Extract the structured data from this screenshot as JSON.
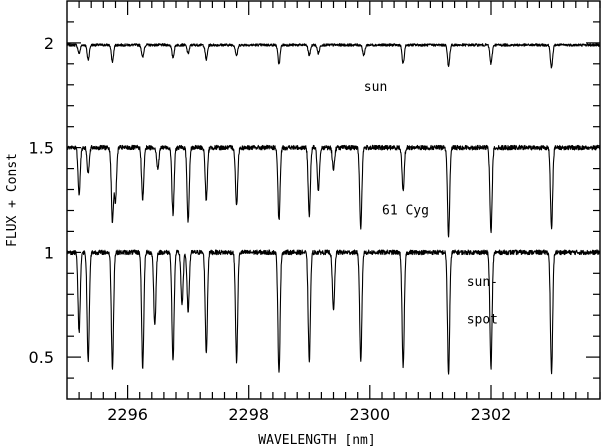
{
  "chart_data": {
    "type": "line",
    "title": "",
    "xlabel": "WAVELENGTH [nm]",
    "ylabel": "FLUX + Const",
    "xlim": [
      2295.0,
      2303.8
    ],
    "ylim": [
      0.3,
      2.2
    ],
    "x_ticks": [
      2296,
      2298,
      2300,
      2302
    ],
    "x_tick_labels": [
      "2296",
      "2298",
      "2300",
      "2302"
    ],
    "y_ticks": [
      0.5,
      1.0,
      1.5,
      2.0
    ],
    "y_tick_labels": [
      "0.5",
      "1",
      "1.5",
      "2"
    ],
    "grid": false,
    "legend": "none",
    "annotations": [
      {
        "text": "sun",
        "x": 2299.9,
        "y": 1.77
      },
      {
        "text": "61 Cyg",
        "x": 2300.2,
        "y": 1.18
      },
      {
        "text": "sun-",
        "x": 2301.6,
        "y": 0.84
      },
      {
        "text": "spot",
        "x": 2301.6,
        "y": 0.66
      }
    ],
    "series": [
      {
        "continuum": 1.99,
        "lines": [
          [
            2295.2,
            0.04
          ],
          [
            2295.35,
            0.07
          ],
          [
            2295.75,
            0.08
          ],
          [
            2296.25,
            0.06
          ],
          [
            2296.75,
            0.06
          ],
          [
            2297.0,
            0.04
          ],
          [
            2297.3,
            0.07
          ],
          [
            2297.8,
            0.05
          ],
          [
            2298.5,
            0.09
          ],
          [
            2299.0,
            0.05
          ],
          [
            2299.15,
            0.04
          ],
          [
            2299.9,
            0.05
          ],
          [
            2300.55,
            0.09
          ],
          [
            2301.3,
            0.1
          ],
          [
            2302.0,
            0.09
          ],
          [
            2303.0,
            0.11
          ]
        ]
      },
      {
        "continuum": 1.5,
        "lines": [
          [
            2295.2,
            0.22
          ],
          [
            2295.35,
            0.12
          ],
          [
            2295.75,
            0.35
          ],
          [
            2295.8,
            0.25
          ],
          [
            2296.25,
            0.25
          ],
          [
            2296.5,
            0.1
          ],
          [
            2296.75,
            0.32
          ],
          [
            2297.0,
            0.35
          ],
          [
            2297.3,
            0.25
          ],
          [
            2297.8,
            0.28
          ],
          [
            2298.5,
            0.35
          ],
          [
            2299.0,
            0.32
          ],
          [
            2299.15,
            0.2
          ],
          [
            2299.4,
            0.1
          ],
          [
            2299.85,
            0.38
          ],
          [
            2300.55,
            0.2
          ],
          [
            2301.3,
            0.42
          ],
          [
            2302.0,
            0.4
          ],
          [
            2303.0,
            0.38
          ]
        ]
      },
      {
        "continuum": 1.0,
        "lines": [
          [
            2295.2,
            0.38
          ],
          [
            2295.35,
            0.52
          ],
          [
            2295.75,
            0.55
          ],
          [
            2296.25,
            0.55
          ],
          [
            2296.45,
            0.35
          ],
          [
            2296.75,
            0.52
          ],
          [
            2296.9,
            0.25
          ],
          [
            2297.0,
            0.28
          ],
          [
            2297.3,
            0.48
          ],
          [
            2297.8,
            0.52
          ],
          [
            2298.5,
            0.58
          ],
          [
            2299.0,
            0.52
          ],
          [
            2299.4,
            0.28
          ],
          [
            2299.85,
            0.52
          ],
          [
            2300.55,
            0.55
          ],
          [
            2301.3,
            0.58
          ],
          [
            2302.0,
            0.55
          ],
          [
            2303.0,
            0.58
          ]
        ]
      }
    ]
  }
}
